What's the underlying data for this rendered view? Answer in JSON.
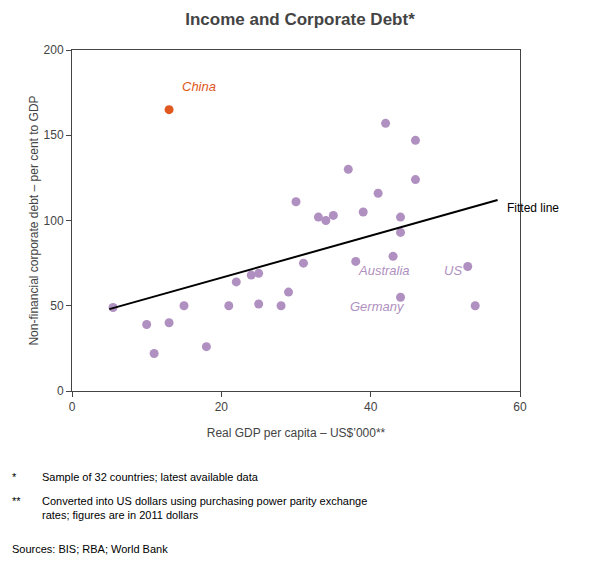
{
  "chart_data": {
    "type": "scatter",
    "title": "Income and Corporate Debt*",
    "xlabel": "Real GDP per capita – US$’000**",
    "ylabel": "Non-financial corporate debt – per cent to GDP",
    "xlim": [
      0,
      60
    ],
    "ylim": [
      0,
      200
    ],
    "xticks": [
      0,
      20,
      40,
      60
    ],
    "yticks": [
      0,
      50,
      100,
      150,
      200
    ],
    "grid": false,
    "series": [
      {
        "type": "scatter",
        "marker": "circle",
        "color": "#b090c0",
        "x": [
          5.5,
          10,
          11,
          13,
          15,
          18,
          21,
          22,
          24,
          25,
          25,
          28,
          29,
          30,
          31,
          33,
          34,
          35,
          37,
          38,
          39,
          41,
          42,
          43,
          44,
          44,
          44,
          46,
          46,
          53,
          54
        ],
        "values": [
          49,
          39,
          22,
          40,
          50,
          26,
          50,
          64,
          68,
          69,
          51,
          50,
          58,
          111,
          75,
          102,
          100,
          103,
          130,
          76,
          105,
          116,
          157,
          79,
          93,
          102,
          55,
          147,
          124,
          73,
          50
        ]
      },
      {
        "type": "scatter",
        "marker": "circle",
        "color": "#e05820",
        "x": [
          13
        ],
        "values": [
          165
        ]
      },
      {
        "type": "line",
        "line_style": "solid",
        "color": "black",
        "x": [
          5,
          57
        ],
        "values": [
          48,
          112
        ]
      }
    ],
    "annotations": [
      {
        "text": "China",
        "x": 14.5,
        "y": 173,
        "color": "#e05820"
      },
      {
        "text": "Fitted line",
        "x": 58,
        "y": 102,
        "color": "black"
      },
      {
        "text": "Australia",
        "x": 38,
        "y": 65,
        "color": "#b090c0"
      },
      {
        "text": "Germany",
        "x": 37,
        "y": 44,
        "color": "#b090c0"
      },
      {
        "text": "US",
        "x": 49.5,
        "y": 65,
        "color": "#b090c0"
      }
    ],
    "footnotes": [
      {
        "mark": "*",
        "text": "Sample of 32 countries; latest available data"
      },
      {
        "mark": "**",
        "text": "Converted into US dollars using purchasing power parity exchange\nrates; figures are in 2011 dollars"
      }
    ],
    "source": "Sources: BIS; RBA; World Bank"
  }
}
